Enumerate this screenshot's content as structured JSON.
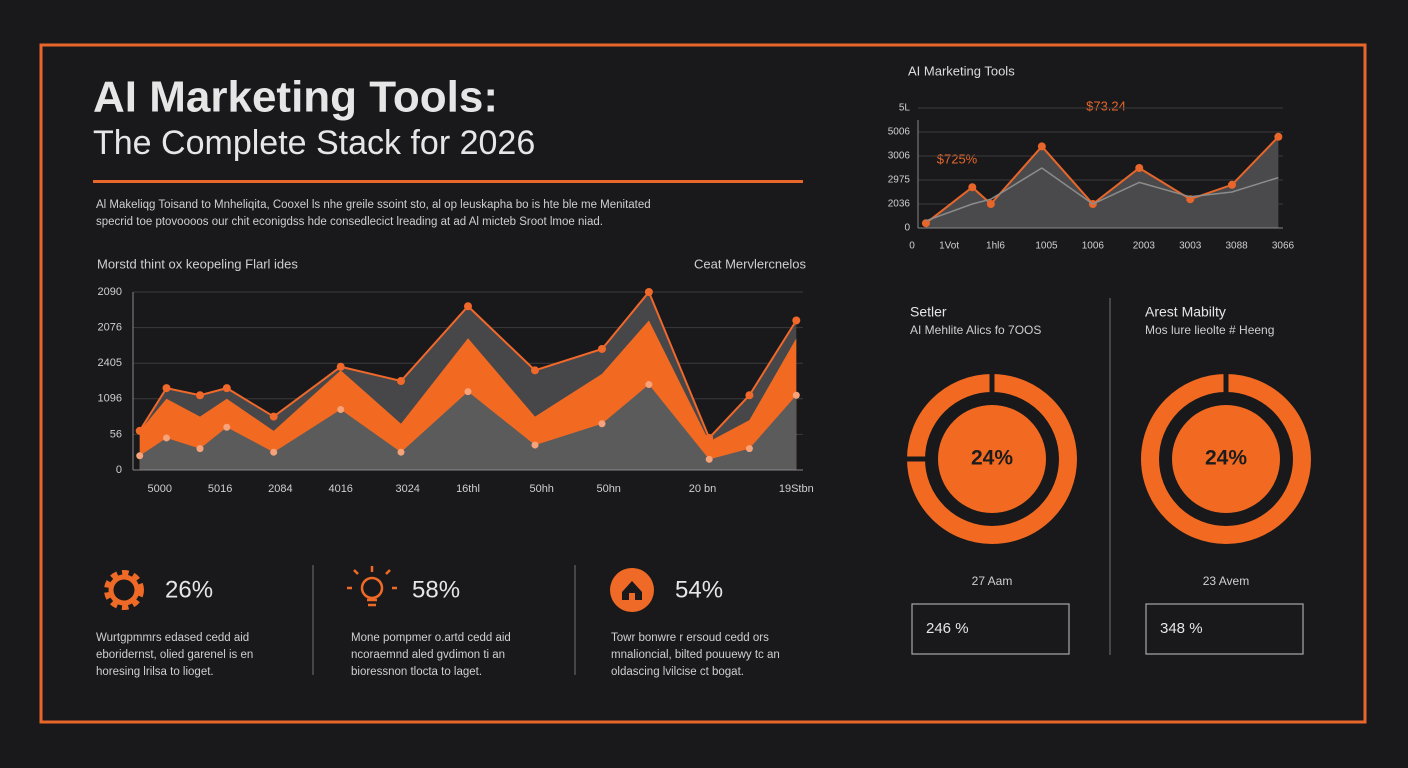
{
  "header": {
    "title": "AI Marketing Tools:",
    "subtitle": "The Complete Stack for 2026",
    "description": [
      "Al Makeliqg Toisand to Mnheliqita, Cooxel ls nhe greile ssoint sto, al op leuskapha bo is hte ble me Menitated",
      "specrid toe ptovoooos our chit econigdss hde consedlecict lreading at ad Al micteb Sroot lmoe niad."
    ]
  },
  "chart_data": [
    {
      "type": "area",
      "left_label": "Morstd thint ox keopeling Flarl ides",
      "right_label": "Ceat Mervlercnelos",
      "x": [
        1,
        5,
        10,
        14,
        21,
        31,
        40,
        50,
        60,
        70,
        77,
        86,
        92,
        99
      ],
      "xlim": [
        0,
        100
      ],
      "xticks": [
        {
          "value": 4,
          "label": "5000"
        },
        {
          "value": 13,
          "label": "5016"
        },
        {
          "value": 22,
          "label": "2084"
        },
        {
          "value": 31,
          "label": "4016"
        },
        {
          "value": 41,
          "label": "3024"
        },
        {
          "value": 50,
          "label": "16thl"
        },
        {
          "value": 61,
          "label": "50hh"
        },
        {
          "value": 71,
          "label": "50hn"
        },
        {
          "value": 85,
          "label": "20 bn"
        },
        {
          "value": 99,
          "label": "19Stbn"
        }
      ],
      "ylim": [
        0,
        5
      ],
      "yticks": [
        0,
        {
          "value": 1,
          "label": "56"
        },
        {
          "value": 2,
          "label": "1096"
        },
        {
          "value": 3,
          "label": "2405"
        },
        {
          "value": 4,
          "label": "2076"
        },
        {
          "value": 5,
          "label": "2090"
        }
      ],
      "grid": true,
      "series": [
        {
          "color": "#47474a",
          "line_color": "#f0682a",
          "values": [
            1.1,
            2.3,
            2.1,
            2.3,
            1.5,
            2.9,
            2.5,
            4.6,
            2.8,
            3.4,
            5.0,
            0.9,
            2.1,
            4.2
          ]
        },
        {
          "color": "#f26a21",
          "values": [
            1.1,
            2.0,
            1.5,
            2.0,
            1.1,
            2.8,
            1.3,
            3.7,
            1.5,
            2.7,
            4.2,
            0.8,
            1.4,
            3.7
          ]
        },
        {
          "color": "#5b5b5c",
          "marker_color": "#f6a27a",
          "values": [
            0.4,
            0.9,
            0.6,
            1.2,
            0.5,
            1.7,
            0.5,
            2.2,
            0.7,
            1.3,
            2.4,
            0.3,
            0.6,
            2.1
          ]
        }
      ]
    },
    {
      "type": "line",
      "title": "AI Marketing Tools",
      "annotations": [
        "$73.24",
        "$725%"
      ],
      "x": [
        0.3,
        1.3,
        1.7,
        2.8,
        3.9,
        4.9,
        6.0,
        6.9,
        7.9
      ],
      "xlim": [
        0,
        8
      ],
      "xticks": [
        0,
        {
          "value": 0.8,
          "label": "1Vot"
        },
        {
          "value": 1.8,
          "label": "1hl6"
        },
        {
          "value": 2.9,
          "label": "1005"
        },
        {
          "value": 3.9,
          "label": "1006"
        },
        {
          "value": 5,
          "label": "2003"
        },
        {
          "value": 6,
          "label": "3003"
        },
        {
          "value": 7,
          "label": "3088"
        },
        {
          "value": 8,
          "label": "3066"
        }
      ],
      "ylim": [
        0,
        5
      ],
      "yticks": [
        0,
        {
          "value": 1,
          "label": "2036"
        },
        {
          "value": 2,
          "label": "2975"
        },
        {
          "value": 3,
          "label": "3006"
        },
        {
          "value": 4,
          "label": "5006"
        },
        {
          "value": 5,
          "label": "5L"
        }
      ],
      "grid": true,
      "area_color": "#4a4a4c",
      "series": [
        {
          "color": "#e8662a",
          "values": [
            0.2,
            1.7,
            1.0,
            3.4,
            1.0,
            2.5,
            1.2,
            1.8,
            3.8
          ]
        },
        {
          "color": "#8c8c8c",
          "values": [
            0.3,
            1.0,
            1.2,
            2.5,
            1.0,
            1.9,
            1.3,
            1.5,
            2.1
          ]
        }
      ]
    },
    {
      "type": "donut",
      "title": "Setler",
      "subtitle": "AI Mehlite Alics fo 7OOS",
      "values": [
        24
      ],
      "value_labels": [
        "24%"
      ],
      "color": "#f26a21",
      "caption": "27 Aam",
      "box": "246 %"
    },
    {
      "type": "donut",
      "title": "Arest Mabilty",
      "subtitle": "Mos lure lieolte # Heeng",
      "values": [
        24
      ],
      "value_labels": [
        "24%"
      ],
      "color": "#f26a21",
      "caption": "23 Avem",
      "box": "348 %"
    }
  ],
  "stats": [
    {
      "value": "26%",
      "text": [
        "Wurtgpmmrs edased cedd aid",
        "eboridernst, olied garenel is en",
        "horesing lrilsa to lioget."
      ]
    },
    {
      "value": "58%",
      "text": [
        "Mone pompmer o.artd cedd aid",
        "ncoraemnd aled gvdimon ti an",
        "bioressnon tlocta to laget."
      ]
    },
    {
      "value": "54%",
      "text": [
        "Towr bonwre r ersoud cedd ors",
        "mnalioncial, bilted pouuewy tc an",
        "oldascing lvilcise ct bogat."
      ]
    }
  ]
}
